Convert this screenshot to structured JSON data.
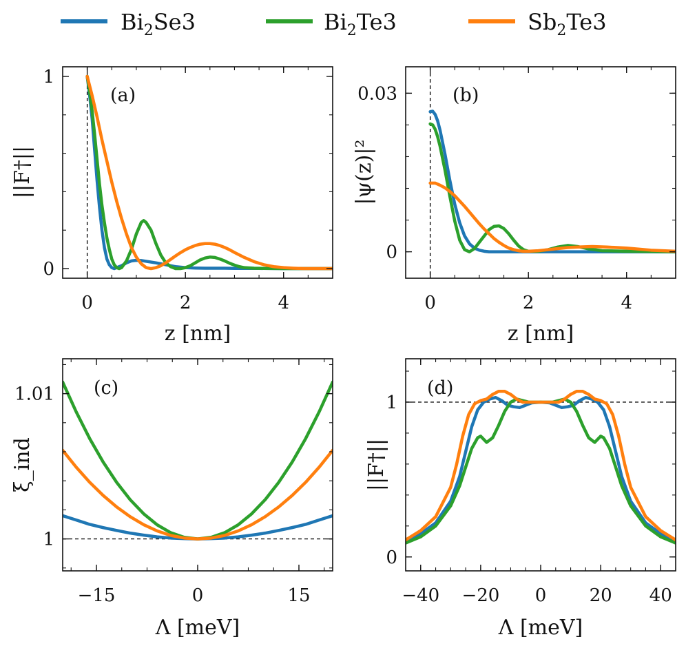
{
  "legend": [
    {
      "base": "Bi",
      "sub": "2",
      "rest": "Se3",
      "color": "#1f77b4"
    },
    {
      "base": "Bi",
      "sub": "2",
      "rest": "Te3",
      "color": "#2ca02c"
    },
    {
      "base": "Sb",
      "sub": "2",
      "rest": "Te3",
      "color": "#ff7f0e"
    }
  ],
  "chart_data": [
    {
      "id": "a",
      "type": "line",
      "panel_label": "(a)",
      "xlabel": "z [nm]",
      "ylabel": "||F†||",
      "xlim": [
        -0.5,
        5
      ],
      "ylim": [
        -0.05,
        1.05
      ],
      "xticks": [
        0,
        2,
        4
      ],
      "xtick_labels": [
        "0",
        "2",
        "4"
      ],
      "yticks": [
        0,
        1
      ],
      "ytick_labels": [
        "0",
        "1"
      ],
      "vline": 0,
      "series": [
        {
          "name": "Bi2Se3",
          "color": "#1f77b4",
          "x": [
            0,
            0.05,
            0.1,
            0.15,
            0.2,
            0.25,
            0.3,
            0.35,
            0.4,
            0.45,
            0.5,
            0.55,
            0.6,
            0.7,
            0.8,
            0.9,
            1.0,
            1.1,
            1.2,
            1.4,
            1.6,
            1.8,
            2.0,
            2.2,
            2.4,
            2.6,
            2.8,
            3.0,
            3.5,
            4.0,
            4.5,
            5.0
          ],
          "y": [
            1.0,
            0.9,
            0.78,
            0.62,
            0.46,
            0.32,
            0.2,
            0.11,
            0.05,
            0.02,
            0.005,
            0.0,
            0.005,
            0.015,
            0.03,
            0.04,
            0.043,
            0.042,
            0.038,
            0.03,
            0.02,
            0.01,
            0.005,
            0.003,
            0.002,
            0.002,
            0.002,
            0.001,
            0.001,
            0.0,
            0.0,
            0.0
          ]
        },
        {
          "name": "Bi2Te3",
          "color": "#2ca02c",
          "x": [
            0,
            0.05,
            0.1,
            0.15,
            0.2,
            0.25,
            0.3,
            0.35,
            0.4,
            0.45,
            0.5,
            0.55,
            0.6,
            0.65,
            0.7,
            0.8,
            0.9,
            1.0,
            1.1,
            1.15,
            1.2,
            1.3,
            1.4,
            1.5,
            1.6,
            1.7,
            1.8,
            1.9,
            2.0,
            2.1,
            2.2,
            2.3,
            2.4,
            2.5,
            2.6,
            2.7,
            2.8,
            2.9,
            3.0,
            3.1,
            3.2,
            3.4,
            3.6,
            4.0,
            4.5,
            5.0
          ],
          "y": [
            1.0,
            0.92,
            0.82,
            0.7,
            0.57,
            0.44,
            0.33,
            0.24,
            0.16,
            0.1,
            0.05,
            0.02,
            0.005,
            0.0,
            0.005,
            0.04,
            0.1,
            0.18,
            0.24,
            0.25,
            0.24,
            0.2,
            0.13,
            0.07,
            0.03,
            0.01,
            0.0,
            0.0,
            0.005,
            0.015,
            0.03,
            0.045,
            0.055,
            0.06,
            0.058,
            0.05,
            0.04,
            0.028,
            0.018,
            0.01,
            0.005,
            0.002,
            0.001,
            0.0,
            0.0,
            0.0
          ]
        },
        {
          "name": "Sb2Te3",
          "color": "#ff7f0e",
          "x": [
            0,
            0.1,
            0.2,
            0.3,
            0.4,
            0.5,
            0.6,
            0.7,
            0.8,
            0.9,
            1.0,
            1.1,
            1.2,
            1.3,
            1.4,
            1.5,
            1.6,
            1.7,
            1.8,
            1.9,
            2.0,
            2.1,
            2.2,
            2.3,
            2.4,
            2.5,
            2.6,
            2.7,
            2.8,
            2.9,
            3.0,
            3.2,
            3.4,
            3.6,
            3.8,
            4.0,
            4.2,
            4.4,
            4.6,
            4.8,
            5.0
          ],
          "y": [
            1.0,
            0.9,
            0.79,
            0.67,
            0.56,
            0.45,
            0.35,
            0.26,
            0.18,
            0.11,
            0.06,
            0.025,
            0.005,
            0.0,
            0.005,
            0.015,
            0.03,
            0.048,
            0.066,
            0.083,
            0.098,
            0.11,
            0.12,
            0.127,
            0.13,
            0.13,
            0.127,
            0.12,
            0.11,
            0.098,
            0.084,
            0.058,
            0.036,
            0.02,
            0.01,
            0.005,
            0.002,
            0.0,
            0.0,
            0.0,
            0.0
          ]
        }
      ]
    },
    {
      "id": "b",
      "type": "line",
      "panel_label": "(b)",
      "xlabel": "z [nm]",
      "ylabel": "|ψ(z)|²",
      "xlim": [
        -0.5,
        5
      ],
      "ylim": [
        -0.005,
        0.035
      ],
      "xticks": [
        0,
        2,
        4
      ],
      "xtick_labels": [
        "0",
        "2",
        "4"
      ],
      "yticks": [
        0,
        0.03
      ],
      "ytick_labels": [
        "0",
        "0.03"
      ],
      "vline": 0,
      "series": [
        {
          "name": "Bi2Se3",
          "color": "#1f77b4",
          "x": [
            0,
            0.05,
            0.1,
            0.15,
            0.2,
            0.3,
            0.4,
            0.5,
            0.6,
            0.7,
            0.8,
            0.9,
            1.0,
            1.1,
            1.2,
            1.4,
            1.6,
            1.8,
            2.0,
            2.5,
            3.0,
            4.0,
            5.0
          ],
          "y": [
            0.0265,
            0.0266,
            0.026,
            0.0248,
            0.023,
            0.0185,
            0.0135,
            0.009,
            0.0055,
            0.003,
            0.0015,
            0.0007,
            0.0003,
            0.0001,
            0.0,
            0.0,
            0.0,
            0.0,
            0.0,
            0.0,
            0.0,
            0.0,
            0.0
          ]
        },
        {
          "name": "Bi2Te3",
          "color": "#2ca02c",
          "x": [
            0,
            0.05,
            0.1,
            0.15,
            0.2,
            0.3,
            0.4,
            0.5,
            0.6,
            0.7,
            0.8,
            0.9,
            1.0,
            1.1,
            1.2,
            1.3,
            1.4,
            1.5,
            1.6,
            1.7,
            1.8,
            1.9,
            2.0,
            2.2,
            2.4,
            2.6,
            2.8,
            3.0,
            3.2,
            3.5,
            4.0,
            5.0
          ],
          "y": [
            0.0242,
            0.024,
            0.0232,
            0.0218,
            0.02,
            0.0155,
            0.0105,
            0.0058,
            0.0022,
            0.0004,
            0.0,
            0.0006,
            0.0018,
            0.003,
            0.0042,
            0.0048,
            0.0049,
            0.0044,
            0.0034,
            0.0022,
            0.0011,
            0.0004,
            0.0001,
            0.0001,
            0.0004,
            0.0009,
            0.0012,
            0.001,
            0.0006,
            0.0002,
            0.0001,
            0.0
          ]
        },
        {
          "name": "Sb2Te3",
          "color": "#ff7f0e",
          "x": [
            0,
            0.1,
            0.2,
            0.3,
            0.4,
            0.5,
            0.6,
            0.7,
            0.8,
            0.9,
            1.0,
            1.1,
            1.2,
            1.3,
            1.4,
            1.5,
            1.6,
            1.7,
            1.8,
            1.9,
            2.0,
            2.2,
            2.4,
            2.6,
            2.8,
            3.0,
            3.3,
            3.6,
            4.0,
            4.5,
            5.0
          ],
          "y": [
            0.013,
            0.013,
            0.0126,
            0.0121,
            0.0114,
            0.0106,
            0.0096,
            0.0086,
            0.0075,
            0.0064,
            0.0053,
            0.0043,
            0.0034,
            0.0025,
            0.0018,
            0.0012,
            0.0007,
            0.0004,
            0.0002,
            0.0001,
            0.0001,
            0.0002,
            0.0004,
            0.0006,
            0.0008,
            0.0009,
            0.001,
            0.0009,
            0.0007,
            0.0003,
            0.0001
          ]
        }
      ]
    },
    {
      "id": "c",
      "type": "line",
      "panel_label": "(c)",
      "xlabel": "Λ [meV]",
      "ylabel": "ξ_ind",
      "xlim": [
        -20,
        20
      ],
      "ylim": [
        0.9978,
        1.0124
      ],
      "xticks": [
        -15,
        0,
        15
      ],
      "xtick_labels": [
        "−15",
        "0",
        "15"
      ],
      "yticks": [
        1.0,
        1.01
      ],
      "ytick_labels": [
        "1",
        "1.01"
      ],
      "hline": 1.0,
      "series": [
        {
          "name": "Bi2Se3",
          "color": "#1f77b4",
          "x": [
            -20,
            -18,
            -16,
            -14,
            -12,
            -10,
            -8,
            -6,
            -4,
            -2,
            0,
            2,
            4,
            6,
            8,
            10,
            12,
            14,
            16,
            18,
            20
          ],
          "y": [
            1.0016,
            1.0013,
            1.001,
            1.00078,
            1.00058,
            1.0004,
            1.00026,
            1.00014,
            1.00006,
            1.00002,
            1.0,
            1.00002,
            1.00006,
            1.00014,
            1.00026,
            1.0004,
            1.00058,
            1.00078,
            1.001,
            1.0013,
            1.0016
          ]
        },
        {
          "name": "Bi2Te3",
          "color": "#2ca02c",
          "x": [
            -20,
            -18,
            -16,
            -14,
            -12,
            -10,
            -8,
            -6,
            -4,
            -2,
            0,
            2,
            4,
            6,
            8,
            10,
            12,
            14,
            16,
            18,
            20
          ],
          "y": [
            1.0108,
            1.00875,
            1.00691,
            1.00529,
            1.00389,
            1.0027,
            1.00173,
            1.00097,
            1.00043,
            1.00011,
            1.0,
            1.00011,
            1.00043,
            1.00097,
            1.00173,
            1.0027,
            1.00389,
            1.00529,
            1.00691,
            1.00875,
            1.0108
          ]
        },
        {
          "name": "Sb2Te3",
          "color": "#ff7f0e",
          "x": [
            -20,
            -18,
            -16,
            -14,
            -12,
            -10,
            -8,
            -6,
            -4,
            -2,
            0,
            2,
            4,
            6,
            8,
            10,
            12,
            14,
            16,
            18,
            20
          ],
          "y": [
            1.0061,
            1.00494,
            1.0039,
            1.00299,
            1.0022,
            1.00153,
            1.00098,
            1.00055,
            1.00024,
            1.00006,
            1.0,
            1.00006,
            1.00024,
            1.00055,
            1.00098,
            1.00153,
            1.0022,
            1.00299,
            1.0039,
            1.00494,
            1.0061
          ]
        }
      ]
    },
    {
      "id": "d",
      "type": "line",
      "panel_label": "(d)",
      "xlabel": "Λ [meV]",
      "ylabel": "||F†||",
      "xlim": [
        -45,
        45
      ],
      "ylim": [
        -0.09,
        1.28
      ],
      "xticks": [
        -40,
        -20,
        0,
        20,
        40
      ],
      "xtick_labels": [
        "−40",
        "−20",
        "0",
        "20",
        "40"
      ],
      "yticks": [
        0,
        1
      ],
      "ytick_labels": [
        "0",
        "1"
      ],
      "hline": 1.0,
      "series": [
        {
          "name": "Bi2Se3",
          "color": "#1f77b4",
          "x": [
            -45,
            -40,
            -35,
            -30,
            -27,
            -25,
            -23,
            -21,
            -19,
            -17,
            -15,
            -13,
            -11,
            -9,
            -7,
            -5,
            -3,
            0,
            3,
            5,
            7,
            9,
            11,
            13,
            15,
            17,
            19,
            21,
            23,
            25,
            27,
            30,
            35,
            40,
            45
          ],
          "y": [
            0.1,
            0.15,
            0.22,
            0.36,
            0.52,
            0.68,
            0.84,
            0.95,
            1.0,
            1.02,
            1.03,
            1.01,
            0.98,
            0.97,
            0.965,
            0.98,
            0.995,
            1.0,
            0.995,
            0.98,
            0.965,
            0.97,
            0.98,
            1.01,
            1.03,
            1.02,
            1.0,
            0.95,
            0.84,
            0.68,
            0.52,
            0.36,
            0.22,
            0.15,
            0.1
          ]
        },
        {
          "name": "Bi2Te3",
          "color": "#2ca02c",
          "x": [
            -45,
            -40,
            -35,
            -30,
            -27,
            -25,
            -23,
            -21,
            -20,
            -19,
            -18,
            -16,
            -14,
            -12,
            -10,
            -8,
            -6,
            -4,
            -2,
            0,
            2,
            4,
            6,
            8,
            10,
            12,
            14,
            16,
            18,
            19,
            20,
            21,
            23,
            25,
            27,
            30,
            35,
            40,
            45
          ],
          "y": [
            0.09,
            0.13,
            0.2,
            0.33,
            0.46,
            0.58,
            0.7,
            0.77,
            0.78,
            0.76,
            0.74,
            0.77,
            0.85,
            0.94,
            1.0,
            1.02,
            1.01,
            1.0,
            1.0,
            1.0,
            1.0,
            1.0,
            1.01,
            1.02,
            1.0,
            0.94,
            0.85,
            0.77,
            0.74,
            0.76,
            0.78,
            0.77,
            0.7,
            0.58,
            0.46,
            0.33,
            0.2,
            0.13,
            0.09
          ]
        },
        {
          "name": "Sb2Te3",
          "color": "#ff7f0e",
          "x": [
            -45,
            -40,
            -35,
            -30,
            -28,
            -26,
            -24,
            -22,
            -20,
            -18,
            -16,
            -14,
            -12,
            -10,
            -8,
            -6,
            -4,
            -2,
            0,
            2,
            4,
            6,
            8,
            10,
            12,
            14,
            16,
            18,
            20,
            22,
            24,
            26,
            28,
            30,
            35,
            40,
            45
          ],
          "y": [
            0.11,
            0.17,
            0.26,
            0.45,
            0.6,
            0.78,
            0.92,
            0.99,
            1.01,
            1.02,
            1.05,
            1.07,
            1.07,
            1.05,
            1.02,
            1.0,
            1.0,
            1.0,
            1.0,
            1.0,
            1.0,
            1.0,
            1.02,
            1.05,
            1.07,
            1.07,
            1.05,
            1.02,
            1.01,
            0.99,
            0.92,
            0.78,
            0.6,
            0.45,
            0.26,
            0.17,
            0.11
          ]
        }
      ]
    }
  ]
}
